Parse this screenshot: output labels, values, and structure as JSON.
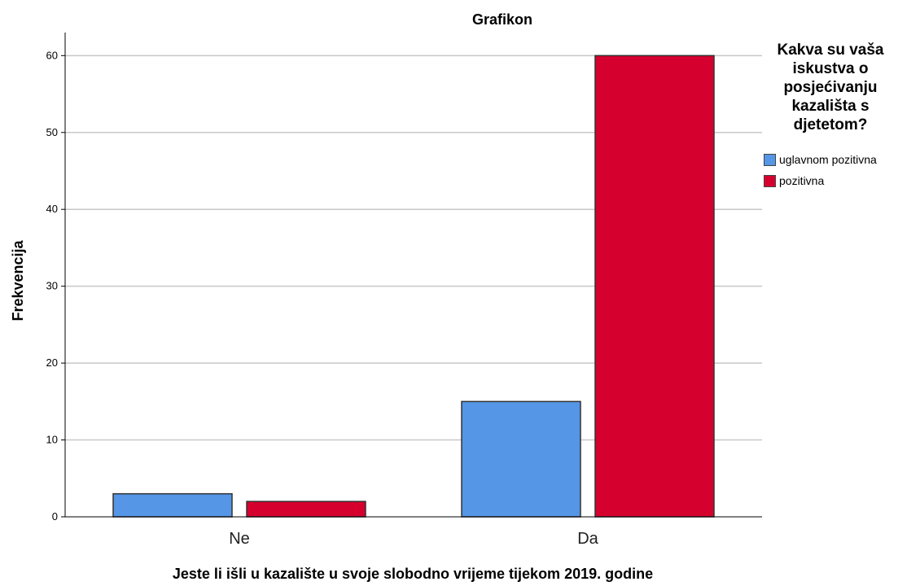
{
  "chart_data": {
    "type": "bar",
    "title": "Grafikon",
    "xlabel": "Jeste li išli u kazalište u svoje slobodno vrijeme tijekom 2019. godine",
    "ylabel": "Frekvencija",
    "categories": [
      "Ne",
      "Da"
    ],
    "series": [
      {
        "name": "uglavnom pozitivna",
        "values": [
          3,
          15
        ],
        "color": "#5596e6"
      },
      {
        "name": "pozitivna",
        "values": [
          2,
          60
        ],
        "color": "#d6002e"
      }
    ],
    "ylim": [
      0,
      63
    ],
    "yticks": [
      "0",
      "10",
      "20",
      "30",
      "40",
      "50",
      "60"
    ],
    "grid": true,
    "legend": {
      "title": "Kakva su vaša iskustva o posjećivanju kazališta s djetetom?",
      "placement": "right"
    }
  }
}
